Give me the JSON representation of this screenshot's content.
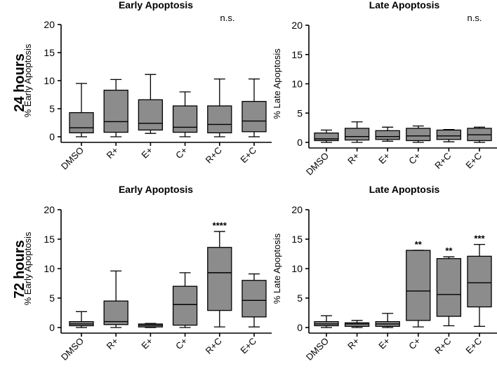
{
  "row_labels": [
    "24 hours",
    "72 hours"
  ],
  "chart_data": [
    {
      "type": "box",
      "title": "Early Apoptosis",
      "ylabel": "% Early Apoptosis",
      "ylim": [
        0,
        20
      ],
      "yticks": [
        "0",
        "5",
        "10",
        "15",
        "20"
      ],
      "categories": [
        "DMSO",
        "R+",
        "E+",
        "C+",
        "R+C",
        "E+C"
      ],
      "boxes": [
        {
          "min": 0.0,
          "q1": 0.7,
          "median": 1.6,
          "q3": 4.3,
          "max": 9.5
        },
        {
          "min": 0.0,
          "q1": 0.8,
          "median": 2.7,
          "q3": 8.3,
          "max": 10.2
        },
        {
          "min": 0.6,
          "q1": 1.2,
          "median": 2.4,
          "q3": 6.6,
          "max": 11.1
        },
        {
          "min": 0.0,
          "q1": 0.8,
          "median": 1.7,
          "q3": 5.5,
          "max": 8.0
        },
        {
          "min": 0.0,
          "q1": 0.7,
          "median": 2.2,
          "q3": 5.5,
          "max": 10.3
        },
        {
          "min": 0.0,
          "q1": 0.9,
          "median": 2.8,
          "q3": 6.3,
          "max": 10.3
        }
      ],
      "annotations": [],
      "corner_note": "n.s."
    },
    {
      "type": "box",
      "title": "Late Apoptosis",
      "ylabel": "% Late Apoptosis",
      "ylim": [
        0,
        20
      ],
      "yticks": [
        "0",
        "5",
        "10",
        "15",
        "20"
      ],
      "categories": [
        "DMSO",
        "R+",
        "E+",
        "C+",
        "R+C",
        "E+C"
      ],
      "boxes": [
        {
          "min": 0.0,
          "q1": 0.3,
          "median": 0.6,
          "q3": 1.6,
          "max": 2.1
        },
        {
          "min": 0.0,
          "q1": 0.4,
          "median": 1.0,
          "q3": 2.4,
          "max": 3.5
        },
        {
          "min": 0.2,
          "q1": 0.5,
          "median": 1.0,
          "q3": 2.0,
          "max": 2.6
        },
        {
          "min": 0.0,
          "q1": 0.3,
          "median": 1.1,
          "q3": 2.4,
          "max": 2.8
        },
        {
          "min": 0.1,
          "q1": 0.5,
          "median": 1.1,
          "q3": 2.1,
          "max": 2.2
        },
        {
          "min": 0.0,
          "q1": 0.3,
          "median": 1.3,
          "q3": 2.4,
          "max": 2.6
        }
      ],
      "annotations": [],
      "corner_note": "n.s."
    },
    {
      "type": "box",
      "title": "Early Apoptosis",
      "ylabel": "% Early Apoptosis",
      "ylim": [
        0,
        20
      ],
      "yticks": [
        "0",
        "5",
        "10",
        "15",
        "20"
      ],
      "categories": [
        "DMSO",
        "R+",
        "E+",
        "C+",
        "R+C",
        "E+C"
      ],
      "boxes": [
        {
          "min": 0.0,
          "q1": 0.3,
          "median": 0.6,
          "q3": 1.0,
          "max": 2.7
        },
        {
          "min": 0.0,
          "q1": 0.5,
          "median": 1.0,
          "q3": 4.5,
          "max": 9.6
        },
        {
          "min": 0.0,
          "q1": 0.1,
          "median": 0.4,
          "q3": 0.6,
          "max": 0.7
        },
        {
          "min": 0.0,
          "q1": 0.4,
          "median": 3.9,
          "q3": 7.0,
          "max": 9.3
        },
        {
          "min": 0.1,
          "q1": 2.9,
          "median": 9.3,
          "q3": 13.6,
          "max": 16.3
        },
        {
          "min": 0.1,
          "q1": 1.8,
          "median": 4.6,
          "q3": 8.0,
          "max": 9.1
        }
      ],
      "annotations": [
        "",
        "",
        "",
        "",
        "****",
        ""
      ],
      "corner_note": ""
    },
    {
      "type": "box",
      "title": "Late Apoptosis",
      "ylabel": "% Late Apoptosis",
      "ylim": [
        0,
        20
      ],
      "yticks": [
        "0",
        "5",
        "10",
        "15",
        "20"
      ],
      "categories": [
        "DMSO",
        "R+",
        "E+",
        "C+",
        "R+C",
        "E+C"
      ],
      "boxes": [
        {
          "min": 0.0,
          "q1": 0.3,
          "median": 0.6,
          "q3": 1.0,
          "max": 2.0
        },
        {
          "min": 0.0,
          "q1": 0.2,
          "median": 0.6,
          "q3": 0.8,
          "max": 1.2
        },
        {
          "min": 0.0,
          "q1": 0.2,
          "median": 0.6,
          "q3": 1.0,
          "max": 2.4
        },
        {
          "min": 0.1,
          "q1": 1.2,
          "median": 6.2,
          "q3": 13.1,
          "max": 13.1
        },
        {
          "min": 0.3,
          "q1": 1.9,
          "median": 5.6,
          "q3": 11.7,
          "max": 12.0
        },
        {
          "min": 0.2,
          "q1": 3.5,
          "median": 7.6,
          "q3": 12.1,
          "max": 14.1
        }
      ],
      "annotations": [
        "",
        "",
        "",
        "**",
        "**",
        "***"
      ],
      "corner_note": ""
    }
  ]
}
